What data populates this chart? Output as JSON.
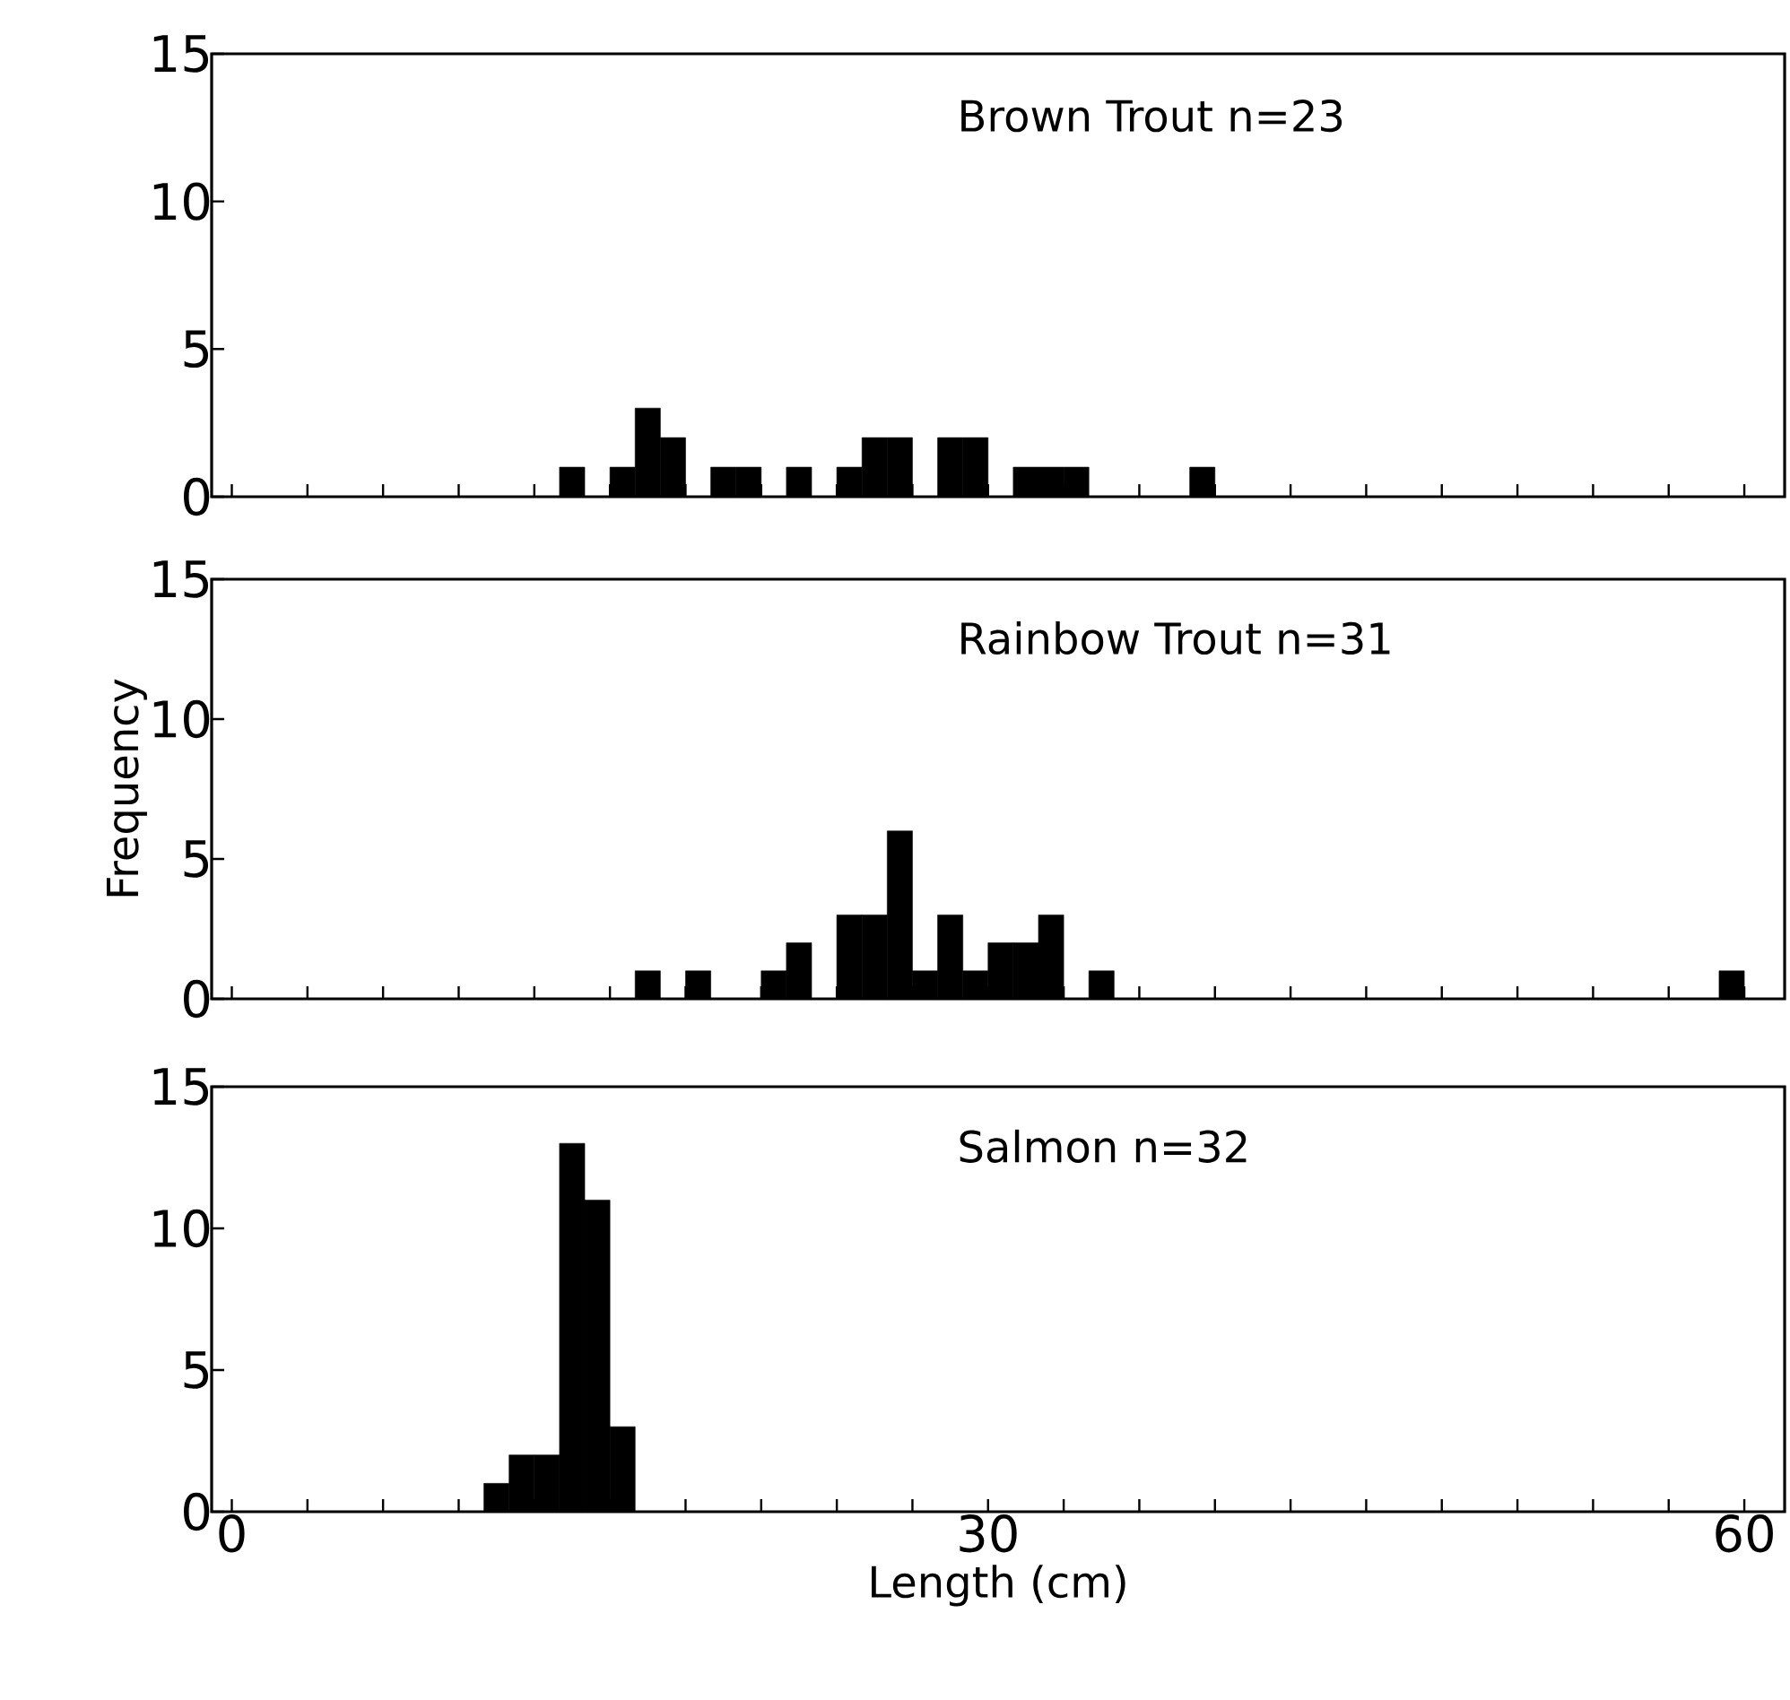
{
  "chart_data": [
    {
      "type": "histogram",
      "title": "Brown Trout n=23",
      "bins": [
        13,
        14,
        15,
        16,
        17,
        18,
        19,
        20,
        21,
        22,
        23,
        24,
        25,
        26,
        27,
        28,
        29,
        30,
        31,
        32,
        33,
        34,
        35,
        36,
        37,
        38,
        39
      ],
      "values": [
        1,
        0,
        1,
        3,
        2,
        0,
        1,
        1,
        0,
        1,
        0,
        1,
        2,
        2,
        0,
        2,
        2,
        0,
        1,
        1,
        1,
        0,
        0,
        0,
        0,
        1
      ],
      "color": "#000000",
      "xlim": [
        -0.8,
        61.6
      ],
      "ylim": [
        0,
        15
      ],
      "yticks": [
        0,
        5,
        10,
        15
      ],
      "xticks": [
        {
          "value": 0,
          "label": null
        },
        {
          "value": 3,
          "label": null
        },
        {
          "value": 6,
          "label": null
        },
        {
          "value": 9,
          "label": null
        },
        {
          "value": 12,
          "label": null
        },
        {
          "value": 15,
          "label": null
        },
        {
          "value": 18,
          "label": null
        },
        {
          "value": 21,
          "label": null
        },
        {
          "value": 24,
          "label": null
        },
        {
          "value": 27,
          "label": null
        },
        {
          "value": 30,
          "label": null
        },
        {
          "value": 33,
          "label": null
        },
        {
          "value": 36,
          "label": null
        },
        {
          "value": 39,
          "label": null
        },
        {
          "value": 42,
          "label": null
        },
        {
          "value": 45,
          "label": null
        },
        {
          "value": 48,
          "label": null
        },
        {
          "value": 51,
          "label": null
        },
        {
          "value": 54,
          "label": null
        },
        {
          "value": 57,
          "label": null
        },
        {
          "value": 60,
          "label": null
        }
      ],
      "tick_labels": "y"
    },
    {
      "type": "histogram",
      "title": "Rainbow Trout n=31",
      "ylabel": "Frequency",
      "bins": [
        16,
        17,
        18,
        19,
        20,
        21,
        22,
        23,
        24,
        25,
        26,
        27,
        28,
        29,
        30,
        31,
        32,
        33,
        34,
        35,
        36,
        37,
        38,
        39,
        40,
        41,
        42,
        43,
        44,
        45,
        46,
        47,
        48,
        49,
        50,
        51,
        52,
        53,
        54,
        55,
        56,
        57,
        58,
        59,
        60
      ],
      "values": [
        1,
        0,
        1,
        0,
        0,
        1,
        2,
        0,
        3,
        3,
        6,
        1,
        3,
        1,
        2,
        2,
        3,
        0,
        1,
        0,
        0,
        0,
        0,
        0,
        0,
        0,
        0,
        0,
        0,
        0,
        0,
        0,
        0,
        0,
        0,
        0,
        0,
        0,
        0,
        0,
        0,
        0,
        0,
        1
      ],
      "color": "#000000",
      "xlim": [
        -0.8,
        61.6
      ],
      "ylim": [
        0,
        15
      ],
      "yticks": [
        0,
        5,
        10,
        15
      ],
      "xticks": [
        {
          "value": 0,
          "label": null
        },
        {
          "value": 3,
          "label": null
        },
        {
          "value": 6,
          "label": null
        },
        {
          "value": 9,
          "label": null
        },
        {
          "value": 12,
          "label": null
        },
        {
          "value": 15,
          "label": null
        },
        {
          "value": 18,
          "label": null
        },
        {
          "value": 21,
          "label": null
        },
        {
          "value": 24,
          "label": null
        },
        {
          "value": 27,
          "label": null
        },
        {
          "value": 30,
          "label": null
        },
        {
          "value": 33,
          "label": null
        },
        {
          "value": 36,
          "label": null
        },
        {
          "value": 39,
          "label": null
        },
        {
          "value": 42,
          "label": null
        },
        {
          "value": 45,
          "label": null
        },
        {
          "value": 48,
          "label": null
        },
        {
          "value": 51,
          "label": null
        },
        {
          "value": 54,
          "label": null
        },
        {
          "value": 57,
          "label": null
        },
        {
          "value": 60,
          "label": null
        }
      ],
      "tick_labels": "y"
    },
    {
      "type": "histogram",
      "title": "Salmon n=32",
      "xlabel": "Length (cm)",
      "bins": [
        10,
        11,
        12,
        13,
        14,
        15,
        16
      ],
      "values": [
        1,
        2,
        2,
        13,
        11,
        3
      ],
      "color": "#000000",
      "xlim": [
        -0.8,
        61.6
      ],
      "ylim": [
        0,
        15
      ],
      "yticks": [
        0,
        5,
        10,
        15
      ],
      "xticks": [
        {
          "value": 0,
          "label": "0"
        },
        {
          "value": 3,
          "label": null
        },
        {
          "value": 6,
          "label": null
        },
        {
          "value": 9,
          "label": null
        },
        {
          "value": 12,
          "label": null
        },
        {
          "value": 15,
          "label": null
        },
        {
          "value": 18,
          "label": null
        },
        {
          "value": 21,
          "label": null
        },
        {
          "value": 24,
          "label": null
        },
        {
          "value": 27,
          "label": null
        },
        {
          "value": 30,
          "label": "30"
        },
        {
          "value": 33,
          "label": null
        },
        {
          "value": 36,
          "label": null
        },
        {
          "value": 39,
          "label": null
        },
        {
          "value": 42,
          "label": null
        },
        {
          "value": 45,
          "label": null
        },
        {
          "value": 48,
          "label": null
        },
        {
          "value": 51,
          "label": null
        },
        {
          "value": 54,
          "label": null
        },
        {
          "value": 57,
          "label": null
        },
        {
          "value": 60,
          "label": "60"
        }
      ]
    }
  ]
}
